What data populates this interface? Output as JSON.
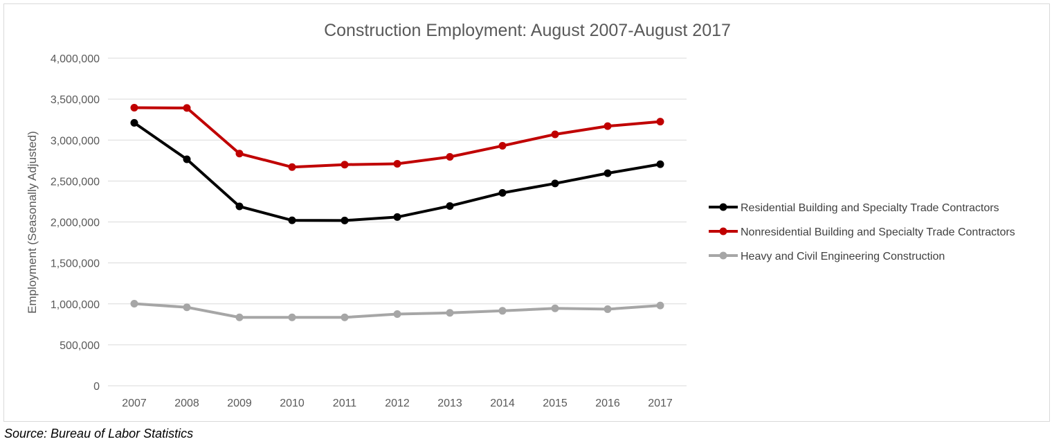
{
  "colors": {
    "residential": "#000000",
    "nonresidential": "#c00000",
    "heavy": "#a6a6a6",
    "grid": "#d9d9d9",
    "text": "#595959"
  },
  "source": "Source: Bureau of Labor Statistics",
  "chart_data": {
    "type": "line",
    "title": "Construction Employment: August 2007-August 2017",
    "xlabel": "",
    "ylabel": "Employment (Seasonally Adjusted)",
    "ylim": [
      0,
      4000000
    ],
    "y_ticks": [
      0,
      500000,
      1000000,
      1500000,
      2000000,
      2500000,
      3000000,
      3500000,
      4000000
    ],
    "y_tick_labels": [
      "0",
      "500,000",
      "1,000,000",
      "1,500,000",
      "2,000,000",
      "2,500,000",
      "3,000,000",
      "3,500,000",
      "4,000,000"
    ],
    "categories": [
      "2007",
      "2008",
      "2009",
      "2010",
      "2011",
      "2012",
      "2013",
      "2014",
      "2015",
      "2016",
      "2017"
    ],
    "grid": true,
    "legend_position": "right",
    "series": [
      {
        "name": "Residential Building and Specialty Trade Contractors",
        "color": "#000000",
        "values": [
          3210000,
          2765000,
          2190000,
          2020000,
          2018000,
          2060000,
          2195000,
          2355000,
          2470000,
          2595000,
          2705000
        ]
      },
      {
        "name": "Nonresidential Building and Specialty Trade Contractors",
        "color": "#c00000",
        "values": [
          3395000,
          3392000,
          2835000,
          2670000,
          2700000,
          2710000,
          2795000,
          2930000,
          3070000,
          3170000,
          3225000
        ]
      },
      {
        "name": "Heavy and Civil Engineering Construction",
        "color": "#a6a6a6",
        "values": [
          1002000,
          958000,
          835000,
          835000,
          835000,
          875000,
          890000,
          915000,
          945000,
          935000,
          980000
        ]
      }
    ]
  }
}
